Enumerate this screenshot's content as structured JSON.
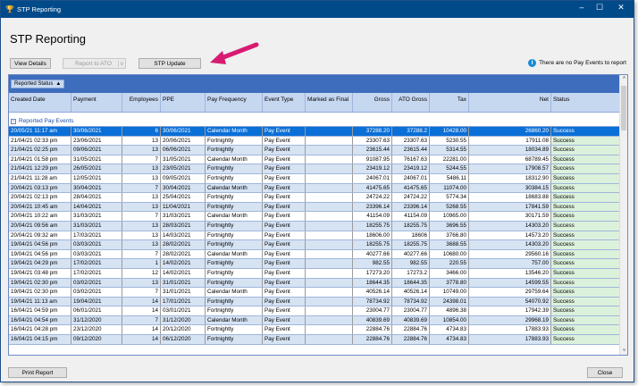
{
  "window": {
    "title": "STP Reporting",
    "minimize": "–",
    "maximize": "☐",
    "close": "✕"
  },
  "page_title": "STP Reporting",
  "toolbar": {
    "view_details": "View Details",
    "report_to_ato": "Report to ATO",
    "report_dropdown": "v",
    "stp_update": "STP Update"
  },
  "info": {
    "icon": "info-icon",
    "text": "There are no Pay Events to report"
  },
  "annotation": {
    "arrow_color": "#d81b72"
  },
  "grid": {
    "group_chip": "Reported Status",
    "group_sort": "▲",
    "columns": [
      "Created Date",
      "Payment",
      "Employees",
      "PPE",
      "Pay Frequency",
      "Event Type",
      "Marked as Final",
      "Gross",
      "ATO Gross",
      "Tax",
      "Net",
      "Status"
    ],
    "group_label": "Reported Pay Events",
    "rows": [
      [
        "20/05/21 11:17 am",
        "30/06/2021",
        "6",
        "30/06/2021",
        "Calendar Month",
        "Pay Event",
        "",
        "37288.20",
        "37288.2",
        "10428.00",
        "26860.20",
        "Success"
      ],
      [
        "21/04/21 02:33 pm",
        "23/06/2021",
        "13",
        "20/06/2021",
        "Fortnightly",
        "Pay Event",
        "",
        "23307.63",
        "23307.63",
        "5230.55",
        "17911.08",
        "Success"
      ],
      [
        "21/04/21 02:25 pm",
        "09/06/2021",
        "13",
        "06/06/2021",
        "Fortnightly",
        "Pay Event",
        "",
        "23615.44",
        "23615.44",
        "5314.55",
        "18034.89",
        "Success"
      ],
      [
        "21/04/21 01:58 pm",
        "31/05/2021",
        "7",
        "31/05/2021",
        "Calendar Month",
        "Pay Event",
        "",
        "91087.95",
        "76167.63",
        "22281.00",
        "68789.45",
        "Success"
      ],
      [
        "21/04/21 12:29 pm",
        "26/05/2021",
        "13",
        "23/05/2021",
        "Fortnightly",
        "Pay Event",
        "",
        "23419.12",
        "23419.12",
        "5244.55",
        "17908.57",
        "Success"
      ],
      [
        "21/04/21 11:28 am",
        "12/05/2021",
        "13",
        "09/05/2021",
        "Fortnightly",
        "Pay Event",
        "",
        "24067.01",
        "24067.01",
        "5486.11",
        "18312.90",
        "Success"
      ],
      [
        "20/04/21 03:13 pm",
        "30/04/2021",
        "7",
        "30/04/2021",
        "Calendar Month",
        "Pay Event",
        "",
        "41475.65",
        "41475.65",
        "11074.00",
        "30384.15",
        "Success"
      ],
      [
        "20/04/21 02:13 pm",
        "28/04/2021",
        "13",
        "25/04/2021",
        "Fortnightly",
        "Pay Event",
        "",
        "24724.22",
        "24724.22",
        "5774.34",
        "18683.88",
        "Success"
      ],
      [
        "20/04/21 10:45 am",
        "14/04/2021",
        "13",
        "11/04/2021",
        "Fortnightly",
        "Pay Event",
        "",
        "23396.14",
        "23396.14",
        "5268.55",
        "17841.59",
        "Success"
      ],
      [
        "20/04/21 10:22 am",
        "31/03/2021",
        "7",
        "31/03/2021",
        "Calendar Month",
        "Pay Event",
        "",
        "41154.09",
        "41154.09",
        "10965.00",
        "30171.59",
        "Success"
      ],
      [
        "20/04/21 09:56 am",
        "31/03/2021",
        "13",
        "28/03/2021",
        "Fortnightly",
        "Pay Event",
        "",
        "18255.75",
        "18255.75",
        "3696.55",
        "14303.20",
        "Success"
      ],
      [
        "20/04/21 09:32 am",
        "17/03/2021",
        "13",
        "14/03/2021",
        "Fortnightly",
        "Pay Event",
        "",
        "18606.00",
        "18606",
        "3766.80",
        "14573.20",
        "Success"
      ],
      [
        "19/04/21 04:56 pm",
        "03/03/2021",
        "13",
        "28/02/2021",
        "Fortnightly",
        "Pay Event",
        "",
        "18255.75",
        "18255.75",
        "3688.55",
        "14303.20",
        "Success"
      ],
      [
        "19/04/21 04:56 pm",
        "03/03/2021",
        "7",
        "28/02/2021",
        "Calendar Month",
        "Pay Event",
        "",
        "40277.66",
        "40277.66",
        "10680.00",
        "29560.16",
        "Success"
      ],
      [
        "19/04/21 04:29 pm",
        "17/02/2021",
        "1",
        "14/02/2021",
        "Fortnightly",
        "Pay Event",
        "",
        "982.55",
        "982.55",
        "220.55",
        "757.00",
        "Success"
      ],
      [
        "19/04/21 03:48 pm",
        "17/02/2021",
        "12",
        "14/02/2021",
        "Fortnightly",
        "Pay Event",
        "",
        "17273.20",
        "17273.2",
        "3466.00",
        "13546.20",
        "Success"
      ],
      [
        "19/04/21 02:30 pm",
        "03/02/2021",
        "13",
        "31/01/2021",
        "Fortnightly",
        "Pay Event",
        "",
        "18644.35",
        "18644.35",
        "3778.80",
        "14599.55",
        "Success"
      ],
      [
        "19/04/21 02:30 pm",
        "03/02/2021",
        "7",
        "31/01/2021",
        "Calendar Month",
        "Pay Event",
        "",
        "40526.14",
        "40526.14",
        "10749.00",
        "29759.64",
        "Success"
      ],
      [
        "19/04/21 11:13 am",
        "19/04/2021",
        "14",
        "17/01/2021",
        "Fortnightly",
        "Pay Event",
        "",
        "78734.92",
        "78734.92",
        "24398.01",
        "54070.92",
        "Success"
      ],
      [
        "16/04/21 04:59 pm",
        "06/01/2021",
        "14",
        "03/01/2021",
        "Fortnightly",
        "Pay Event",
        "",
        "23004.77",
        "23004.77",
        "4896.38",
        "17942.39",
        "Success"
      ],
      [
        "16/04/21 04:54 pm",
        "31/12/2020",
        "7",
        "31/12/2020",
        "Calendar Month",
        "Pay Event",
        "",
        "40839.69",
        "40839.69",
        "10854.00",
        "29968.19",
        "Success"
      ],
      [
        "16/04/21 04:28 pm",
        "23/12/2020",
        "14",
        "20/12/2020",
        "Fortnightly",
        "Pay Event",
        "",
        "22884.76",
        "22884.76",
        "4734.83",
        "17883.93",
        "Success"
      ],
      [
        "16/04/21 04:15 pm",
        "09/12/2020",
        "14",
        "06/12/2020",
        "Fortnightly",
        "Pay Event",
        "",
        "22884.76",
        "22884.76",
        "4734.83",
        "17883.93",
        "Success"
      ]
    ]
  },
  "footer": {
    "print_report": "Print Report",
    "close": "Close"
  }
}
